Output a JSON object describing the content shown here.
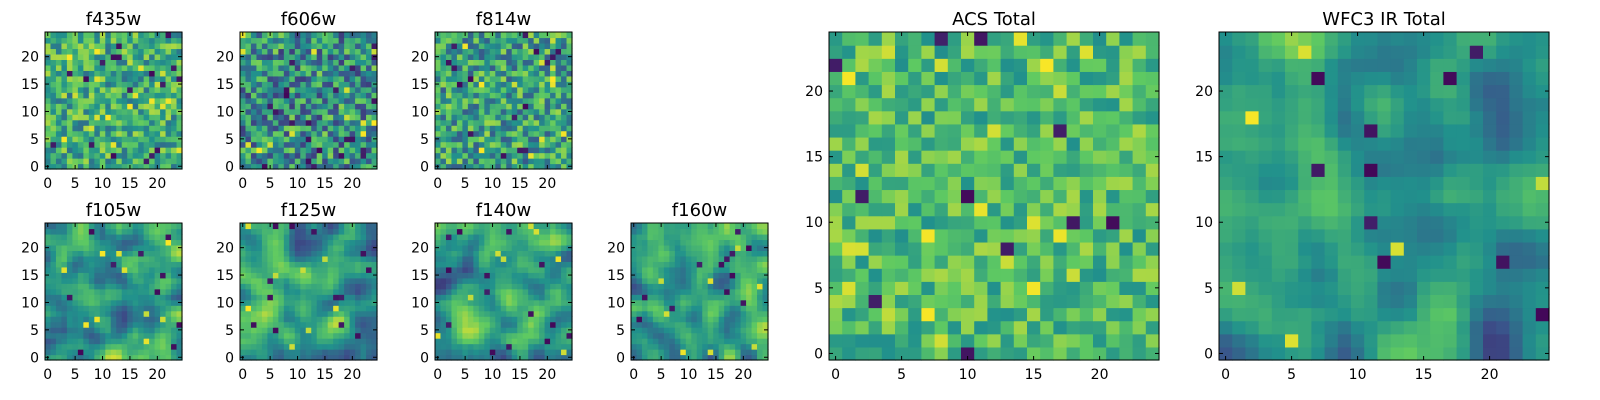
{
  "figure": {
    "background": "#ffffff",
    "colormap": "viridis",
    "colormap_stops": [
      "#440154",
      "#3b528b",
      "#21918c",
      "#5ec962",
      "#fde725"
    ],
    "grid": false,
    "legend": "none"
  },
  "chart_data": [
    {
      "type": "heatmap",
      "title": "f435w",
      "xlim": [
        0,
        24
      ],
      "ylim": [
        0,
        24
      ],
      "xticks": [
        0,
        5,
        10,
        15,
        20
      ],
      "yticks": [
        0,
        5,
        10,
        15,
        20
      ],
      "seed": 11,
      "smooth": 0,
      "mean": 0.62,
      "spread": 0.16,
      "dark_spots": 18,
      "bright_spots": 20
    },
    {
      "type": "heatmap",
      "title": "f606w",
      "xlim": [
        0,
        24
      ],
      "ylim": [
        0,
        24
      ],
      "xticks": [
        0,
        5,
        10,
        15,
        20
      ],
      "yticks": [
        0,
        5,
        10,
        15,
        20
      ],
      "seed": 23,
      "smooth": 0,
      "mean": 0.5,
      "spread": 0.2,
      "dark_spots": 22,
      "bright_spots": 14
    },
    {
      "type": "heatmap",
      "title": "f814w",
      "xlim": [
        0,
        24
      ],
      "ylim": [
        0,
        24
      ],
      "xticks": [
        0,
        5,
        10,
        15,
        20
      ],
      "yticks": [
        0,
        5,
        10,
        15,
        20
      ],
      "seed": 37,
      "smooth": 0,
      "mean": 0.57,
      "spread": 0.18,
      "dark_spots": 16,
      "bright_spots": 12
    },
    {
      "type": "heatmap",
      "title": "f105w",
      "xlim": [
        0,
        24
      ],
      "ylim": [
        0,
        24
      ],
      "xticks": [
        0,
        5,
        10,
        15,
        20
      ],
      "yticks": [
        0,
        5,
        10,
        15,
        20
      ],
      "seed": 41,
      "smooth": 1,
      "mean": 0.58,
      "spread": 0.22,
      "dark_spots": 10,
      "bright_spots": 10
    },
    {
      "type": "heatmap",
      "title": "f125w",
      "xlim": [
        0,
        24
      ],
      "ylim": [
        0,
        24
      ],
      "xticks": [
        0,
        5,
        10,
        15,
        20
      ],
      "yticks": [
        0,
        5,
        10,
        15,
        20
      ],
      "seed": 53,
      "smooth": 1,
      "mean": 0.55,
      "spread": 0.22,
      "dark_spots": 14,
      "bright_spots": 8
    },
    {
      "type": "heatmap",
      "title": "f140w",
      "xlim": [
        0,
        24
      ],
      "ylim": [
        0,
        24
      ],
      "xticks": [
        0,
        5,
        10,
        15,
        20
      ],
      "yticks": [
        0,
        5,
        10,
        15,
        20
      ],
      "seed": 67,
      "smooth": 1,
      "mean": 0.54,
      "spread": 0.22,
      "dark_spots": 14,
      "bright_spots": 8
    },
    {
      "type": "heatmap",
      "title": "f160w",
      "xlim": [
        0,
        24
      ],
      "ylim": [
        0,
        24
      ],
      "xticks": [
        0,
        5,
        10,
        15,
        20
      ],
      "yticks": [
        0,
        5,
        10,
        15,
        20
      ],
      "seed": 79,
      "smooth": 1,
      "mean": 0.56,
      "spread": 0.2,
      "dark_spots": 12,
      "bright_spots": 8
    },
    {
      "type": "heatmap",
      "title": "ACS Total",
      "xlim": [
        0,
        24
      ],
      "ylim": [
        0,
        24
      ],
      "xticks": [
        0,
        5,
        10,
        15,
        20
      ],
      "yticks": [
        0,
        5,
        10,
        15,
        20
      ],
      "seed": 97,
      "smooth": 0,
      "mean": 0.68,
      "spread": 0.12,
      "dark_spots": 12,
      "bright_spots": 22
    },
    {
      "type": "heatmap",
      "title": "WFC3 IR Total",
      "xlim": [
        0,
        24
      ],
      "ylim": [
        0,
        24
      ],
      "xticks": [
        0,
        5,
        10,
        15,
        20
      ],
      "yticks": [
        0,
        5,
        10,
        15,
        20
      ],
      "seed": 131,
      "smooth": 1,
      "mean": 0.52,
      "spread": 0.2,
      "dark_spots": 10,
      "bright_spots": 6
    }
  ]
}
